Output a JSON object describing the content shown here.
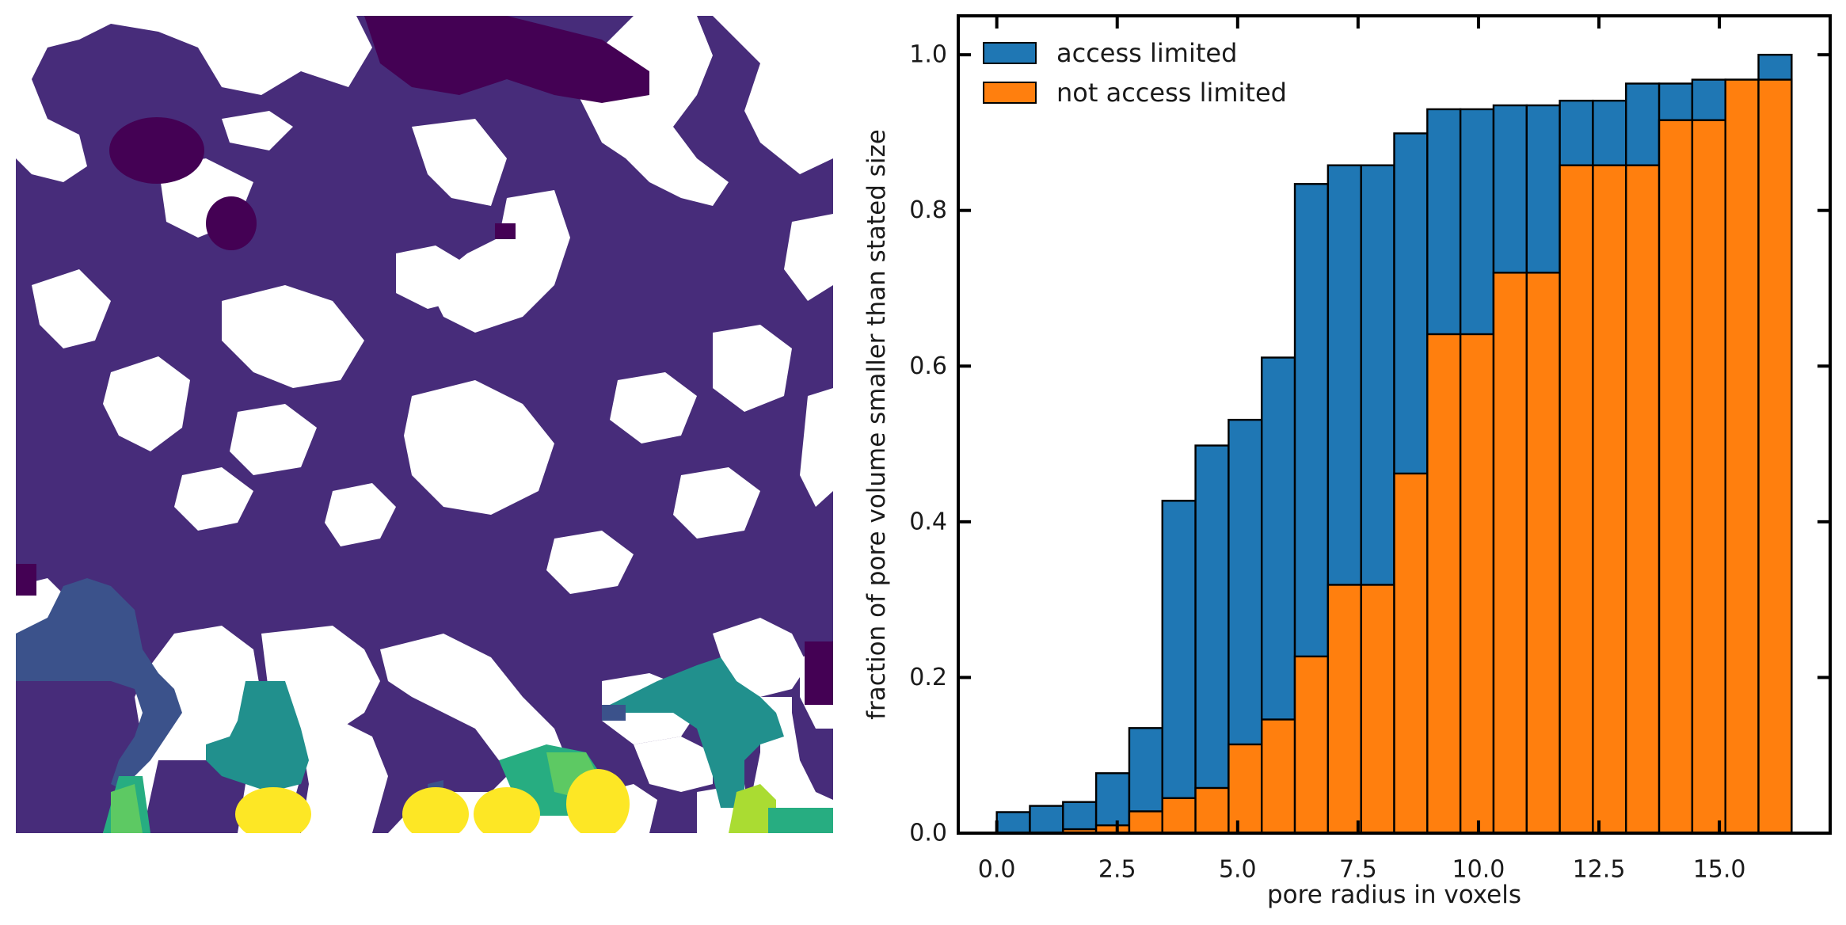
{
  "colors": {
    "access_limited": "#1f77b4",
    "not_access_limited": "#ff7f0e",
    "edge": "#000000",
    "map_solid": "#ffffff",
    "map_dark": "#440154",
    "map_main": "#472c7a",
    "map_blue": "#3b528b",
    "map_teal": "#21908d",
    "map_green": "#27ad81",
    "map_lightgreen": "#5dc963",
    "map_lime": "#aadc32",
    "map_yellow": "#fde725"
  },
  "image_panel": {
    "description_icon": "pore-size-map-image"
  },
  "chart_data": {
    "type": "bar",
    "title": "",
    "xlabel": "pore radius in voxels",
    "ylabel": "fraction of pore volume smaller than stated size",
    "xlim": [
      -0.8,
      17.3
    ],
    "ylim": [
      0.0,
      1.05
    ],
    "xticks": [
      0.0,
      2.5,
      5.0,
      7.5,
      10.0,
      12.5,
      15.0
    ],
    "xtick_labels": [
      "0.0",
      "2.5",
      "5.0",
      "7.5",
      "10.0",
      "12.5",
      "15.0"
    ],
    "yticks": [
      0.0,
      0.2,
      0.4,
      0.6,
      0.8,
      1.0
    ],
    "ytick_labels": [
      "0.0",
      "0.2",
      "0.4",
      "0.6",
      "0.8",
      "1.0"
    ],
    "legend_position": "top-left",
    "bin_width": 0.6875,
    "bin_left_edges": [
      0.0,
      0.6875,
      1.375,
      2.0625,
      2.75,
      3.4375,
      4.125,
      4.8125,
      5.5,
      6.1875,
      6.875,
      7.5625,
      8.25,
      8.9375,
      9.625,
      10.3125,
      11.0,
      11.6875,
      12.375,
      13.0625,
      13.75,
      14.4375,
      15.125,
      15.8125
    ],
    "series": [
      {
        "name": "access limited",
        "color_key": "access_limited",
        "values": [
          0.027,
          0.035,
          0.04,
          0.077,
          0.135,
          0.427,
          0.498,
          0.531,
          0.611,
          0.834,
          0.858,
          0.858,
          0.899,
          0.93,
          0.93,
          0.935,
          0.935,
          0.941,
          0.941,
          0.963,
          0.963,
          0.968,
          0.968,
          1.0
        ]
      },
      {
        "name": "not access limited",
        "color_key": "not_access_limited",
        "values": [
          0.0,
          0.0,
          0.005,
          0.01,
          0.028,
          0.045,
          0.058,
          0.114,
          0.146,
          0.227,
          0.319,
          0.319,
          0.462,
          0.641,
          0.641,
          0.72,
          0.72,
          0.858,
          0.858,
          0.858,
          0.916,
          0.916,
          0.968,
          0.968
        ]
      }
    ]
  }
}
